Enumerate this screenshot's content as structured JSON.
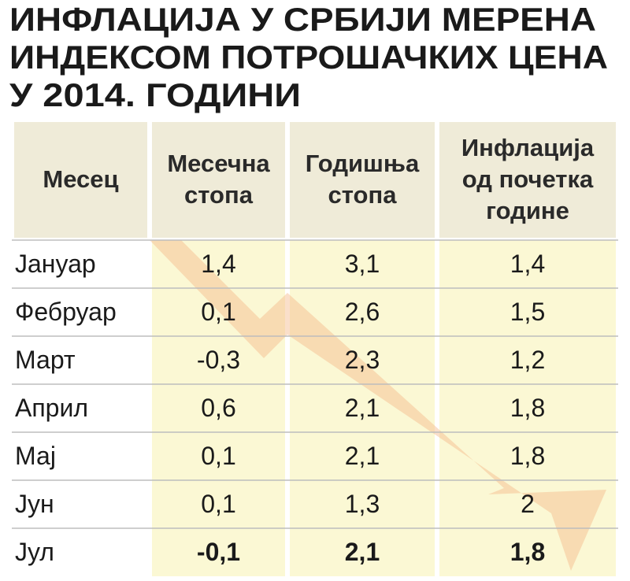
{
  "header": {
    "title": [
      "ИНФЛАЦИЈА У СРБИЈИ МЕРЕНА",
      "ИНДЕКСОМ ПОТРОШАЧКИХ ЦЕНА",
      "У 2014. ГОДИНИ"
    ]
  },
  "table": {
    "columns": [
      [
        "Месец"
      ],
      [
        "Месечна",
        "стопа"
      ],
      [
        "Годишња",
        "стопа"
      ],
      [
        "Инфлација",
        "од почетка",
        "године"
      ]
    ],
    "rows": [
      [
        "Јануар",
        "1,4",
        "3,1",
        "1,4"
      ],
      [
        "Фебруар",
        "0,1",
        "2,6",
        "1,5"
      ],
      [
        "Март",
        "-0,3",
        "2,3",
        "1,2"
      ],
      [
        "Април",
        "0,6",
        "2,1",
        "1,8"
      ],
      [
        "Мај",
        "0,1",
        "2,1",
        "1,8"
      ],
      [
        "Јун",
        "0,1",
        "1,3",
        "2"
      ],
      [
        "Јул",
        "-0,1",
        "2,1",
        "1,8"
      ]
    ]
  }
}
